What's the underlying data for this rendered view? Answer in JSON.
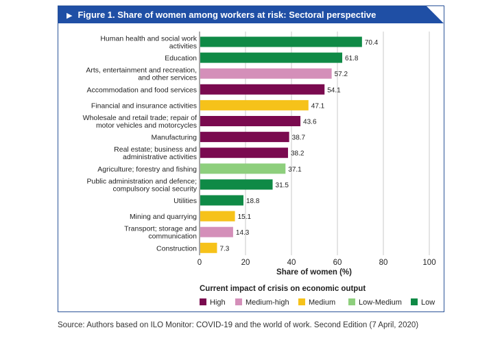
{
  "figure_title": "Figure 1. Share of women among workers at risk: Sectoral perspective",
  "source": "Source: Authors based on ILO Monitor: COVID-19 and the world of work. Second Edition (7 April, 2020)",
  "colors": {
    "High": "#7a0a4f",
    "Medium-high": "#d48fb9",
    "Medium": "#f6c21a",
    "Low-Medium": "#8ecf7d",
    "Low": "#0f8a46",
    "grid": "#c8c8c8",
    "header": "#1f4fa5"
  },
  "chart_data": {
    "type": "bar",
    "orientation": "horizontal",
    "title": "Figure 1. Share of women among workers at risk: Sectoral perspective",
    "xlabel": "Share of women (%)",
    "ylabel": "",
    "xlim": [
      0,
      100
    ],
    "xticks": [
      0,
      20,
      40,
      60,
      80,
      100
    ],
    "grid": "vertical",
    "legend_title": "Current impact of crisis on economic output",
    "legend_position": "bottom",
    "legend": [
      "High",
      "Medium-high",
      "Medium",
      "Low-Medium",
      "Low"
    ],
    "categories": [
      [
        "Human health and social work",
        "activities"
      ],
      [
        "Education"
      ],
      [
        "Arts, entertainment and recreation,",
        "and other services"
      ],
      [
        "Accommodation and food services"
      ],
      [
        "Financial and insurance activities"
      ],
      [
        "Wholesale and retail trade; repair of",
        "motor vehicles and motorcycles"
      ],
      [
        "Manufacturing"
      ],
      [
        "Real estate; business and",
        "administrative activities"
      ],
      [
        "Agriculture; forestry and fishing"
      ],
      [
        "Public administration and defence;",
        "compulsory social security"
      ],
      [
        "Utilities"
      ],
      [
        "Mining and quarrying"
      ],
      [
        "Transport; storage and",
        "communication"
      ],
      [
        "Construction"
      ]
    ],
    "values": [
      70.4,
      61.8,
      57.2,
      54.1,
      47.1,
      43.6,
      38.7,
      38.2,
      37.1,
      31.5,
      18.8,
      15.1,
      14.3,
      7.3
    ],
    "value_labels": [
      "70.4",
      "61.8",
      "57.2",
      "54.1",
      "47.1",
      "43.6",
      "38.7",
      "38.2",
      "37.1",
      "31.5",
      "18.8",
      "15.1",
      "14.3",
      "7.3"
    ],
    "impact": [
      "Low",
      "Low",
      "Medium-high",
      "High",
      "Medium",
      "High",
      "High",
      "High",
      "Low-Medium",
      "Low",
      "Low",
      "Medium",
      "Medium-high",
      "Medium"
    ]
  }
}
